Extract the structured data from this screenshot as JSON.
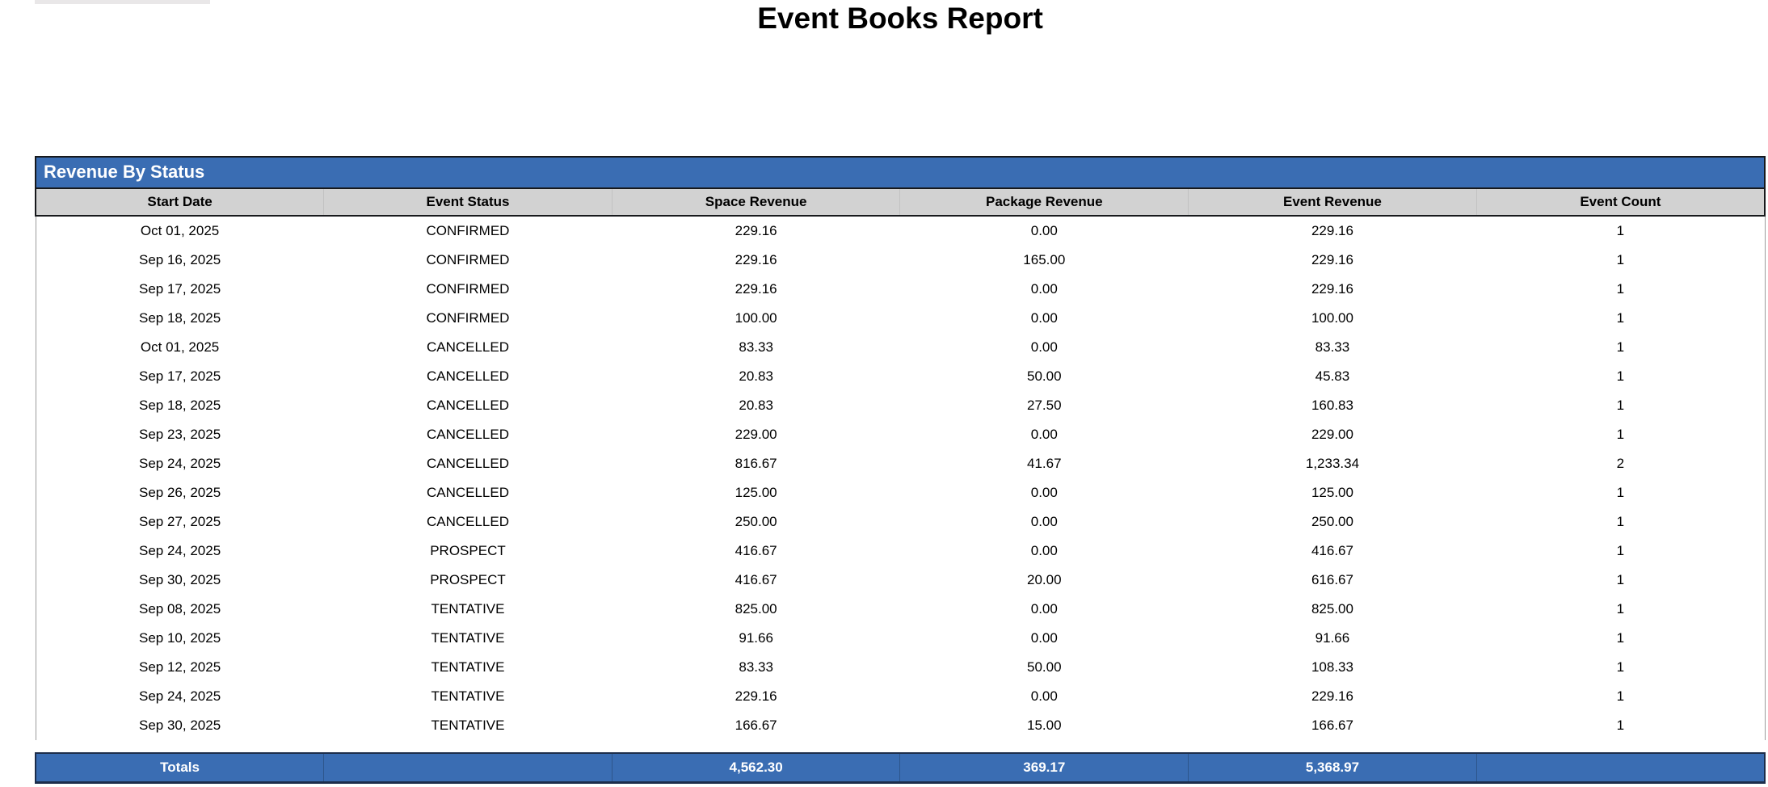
{
  "page": {
    "title": "Event Books Report"
  },
  "section": {
    "title": "Revenue By Status"
  },
  "colors": {
    "accent_blue": "#3a6db3",
    "header_gray": "#d2d2d2",
    "border_dark": "#17191c"
  },
  "table": {
    "columns": [
      "Start Date",
      "Event Status",
      "Space Revenue",
      "Package Revenue",
      "Event Revenue",
      "Event Count"
    ],
    "rows": [
      {
        "start_date": "Oct 01, 2025",
        "event_status": "CONFIRMED",
        "space_revenue": "229.16",
        "package_revenue": "0.00",
        "event_revenue": "229.16",
        "event_count": "1"
      },
      {
        "start_date": "Sep 16, 2025",
        "event_status": "CONFIRMED",
        "space_revenue": "229.16",
        "package_revenue": "165.00",
        "event_revenue": "229.16",
        "event_count": "1"
      },
      {
        "start_date": "Sep 17, 2025",
        "event_status": "CONFIRMED",
        "space_revenue": "229.16",
        "package_revenue": "0.00",
        "event_revenue": "229.16",
        "event_count": "1"
      },
      {
        "start_date": "Sep 18, 2025",
        "event_status": "CONFIRMED",
        "space_revenue": "100.00",
        "package_revenue": "0.00",
        "event_revenue": "100.00",
        "event_count": "1"
      },
      {
        "start_date": "Oct 01, 2025",
        "event_status": "CANCELLED",
        "space_revenue": "83.33",
        "package_revenue": "0.00",
        "event_revenue": "83.33",
        "event_count": "1"
      },
      {
        "start_date": "Sep 17, 2025",
        "event_status": "CANCELLED",
        "space_revenue": "20.83",
        "package_revenue": "50.00",
        "event_revenue": "45.83",
        "event_count": "1"
      },
      {
        "start_date": "Sep 18, 2025",
        "event_status": "CANCELLED",
        "space_revenue": "20.83",
        "package_revenue": "27.50",
        "event_revenue": "160.83",
        "event_count": "1"
      },
      {
        "start_date": "Sep 23, 2025",
        "event_status": "CANCELLED",
        "space_revenue": "229.00",
        "package_revenue": "0.00",
        "event_revenue": "229.00",
        "event_count": "1"
      },
      {
        "start_date": "Sep 24, 2025",
        "event_status": "CANCELLED",
        "space_revenue": "816.67",
        "package_revenue": "41.67",
        "event_revenue": "1,233.34",
        "event_count": "2"
      },
      {
        "start_date": "Sep 26, 2025",
        "event_status": "CANCELLED",
        "space_revenue": "125.00",
        "package_revenue": "0.00",
        "event_revenue": "125.00",
        "event_count": "1"
      },
      {
        "start_date": "Sep 27, 2025",
        "event_status": "CANCELLED",
        "space_revenue": "250.00",
        "package_revenue": "0.00",
        "event_revenue": "250.00",
        "event_count": "1"
      },
      {
        "start_date": "Sep 24, 2025",
        "event_status": "PROSPECT",
        "space_revenue": "416.67",
        "package_revenue": "0.00",
        "event_revenue": "416.67",
        "event_count": "1"
      },
      {
        "start_date": "Sep 30, 2025",
        "event_status": "PROSPECT",
        "space_revenue": "416.67",
        "package_revenue": "20.00",
        "event_revenue": "616.67",
        "event_count": "1"
      },
      {
        "start_date": "Sep 08, 2025",
        "event_status": "TENTATIVE",
        "space_revenue": "825.00",
        "package_revenue": "0.00",
        "event_revenue": "825.00",
        "event_count": "1"
      },
      {
        "start_date": "Sep 10, 2025",
        "event_status": "TENTATIVE",
        "space_revenue": "91.66",
        "package_revenue": "0.00",
        "event_revenue": "91.66",
        "event_count": "1"
      },
      {
        "start_date": "Sep 12, 2025",
        "event_status": "TENTATIVE",
        "space_revenue": "83.33",
        "package_revenue": "50.00",
        "event_revenue": "108.33",
        "event_count": "1"
      },
      {
        "start_date": "Sep 24, 2025",
        "event_status": "TENTATIVE",
        "space_revenue": "229.16",
        "package_revenue": "0.00",
        "event_revenue": "229.16",
        "event_count": "1"
      },
      {
        "start_date": "Sep 30, 2025",
        "event_status": "TENTATIVE",
        "space_revenue": "166.67",
        "package_revenue": "15.00",
        "event_revenue": "166.67",
        "event_count": "1"
      }
    ],
    "totals": {
      "label": "Totals",
      "event_status": "",
      "space_revenue": "4,562.30",
      "package_revenue": "369.17",
      "event_revenue": "5,368.97",
      "event_count": ""
    }
  }
}
